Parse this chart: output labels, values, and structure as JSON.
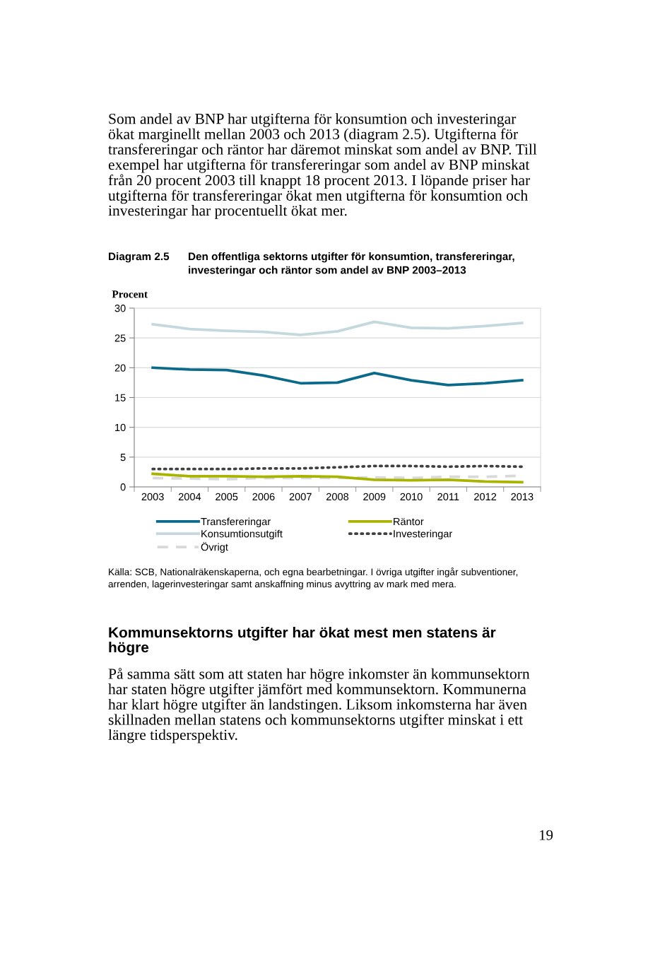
{
  "chart_data": {
    "type": "line",
    "title": "Diagram 2.5",
    "subtitle": "Den offentliga sektorns utgifter för konsumtion, transfereringar,\ninvesteringar och räntor som andel av BNP 2003–2013",
    "ylabel": "Procent",
    "categories": [
      "2003",
      "2004",
      "2005",
      "2006",
      "2007",
      "2008",
      "2009",
      "2010",
      "2011",
      "2012",
      "2013"
    ],
    "series": [
      {
        "name": "Transfereringar",
        "color": "#0b6a8a",
        "line_style": "solid",
        "values": [
          20.0,
          19.7,
          19.6,
          18.7,
          17.4,
          17.5,
          19.1,
          17.9,
          17.1,
          17.4,
          17.9
        ]
      },
      {
        "name": "Konsumtionsutgift",
        "color": "#c4d8de",
        "line_style": "solid",
        "values": [
          27.3,
          26.5,
          26.2,
          26.0,
          25.5,
          26.1,
          27.7,
          26.7,
          26.6,
          27.0,
          27.5
        ]
      },
      {
        "name": "Övrigt",
        "color": "#d9d9d9",
        "line_style": "dashed",
        "values": [
          1.5,
          1.4,
          1.3,
          1.5,
          1.5,
          1.5,
          1.6,
          1.5,
          1.7,
          1.7,
          1.9
        ]
      },
      {
        "name": "Räntor",
        "color": "#a8b400",
        "line_style": "solid",
        "values": [
          2.2,
          1.8,
          1.8,
          1.7,
          1.8,
          1.7,
          1.2,
          1.1,
          1.2,
          0.9,
          0.8
        ]
      },
      {
        "name": "Investeringar",
        "color": "#404040",
        "line_style": "dotted",
        "values": [
          3.0,
          3.0,
          3.0,
          3.1,
          3.1,
          3.3,
          3.5,
          3.5,
          3.4,
          3.5,
          3.4
        ]
      }
    ],
    "ylim": [
      0,
      30
    ],
    "yticks": [
      0,
      5,
      10,
      15,
      20,
      25,
      30
    ],
    "grid": "y",
    "legend": "bottom",
    "marker": "none",
    "annotations": [
      "Som andel av BNP har utgifterna för konsumtion och investeringar\nökat marginellt mellan 2003 och 2013 (diagram 2.5). Utgifterna för\ntransfereringar och räntor har däremot minskat som andel av BNP. Till\nexempel har utgifterna för transfereringar som andel av BNP minskat\nfrån 20 procent 2003 till knappt 18 procent 2013. I löpande priser har\nutgifterna för transfereringar ökat men utgifterna för konsumtion och\ninvesteringar har procentuellt ökat mer.",
      "Källa: SCB, Nationalräkenskaperna, och egna bearbetningar. I övriga utgifter ingår subventioner,\narrenden, lagerinvesteringar samt anskaffning minus avyttring av mark med mera.",
      "Kommunsektorns utgifter har ökat mest men statens är\nhögre",
      "På samma sätt som att staten har högre inkomster än kommunsektorn\nhar staten högre utgifter jämfört med kommunsektorn. Kommunerna\nhar klart högre utgifter än landstingen. Liksom inkomsterna har även\nskillnaden mellan statens och kommunsektorns utgifter minskat i ett\nlängre tidsperspektiv.",
      "19"
    ]
  }
}
